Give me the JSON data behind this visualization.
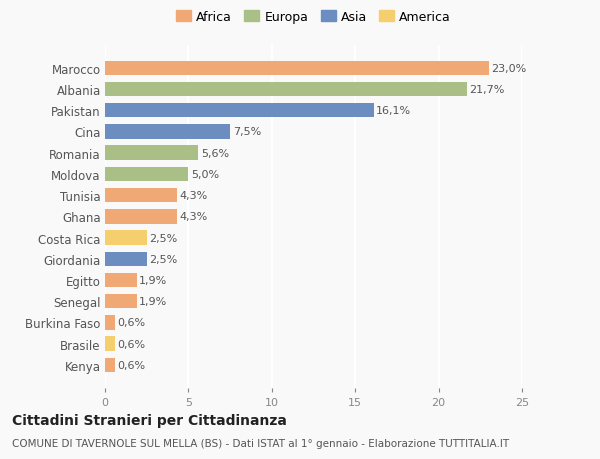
{
  "countries": [
    "Marocco",
    "Albania",
    "Pakistan",
    "Cina",
    "Romania",
    "Moldova",
    "Tunisia",
    "Ghana",
    "Costa Rica",
    "Giordania",
    "Egitto",
    "Senegal",
    "Burkina Faso",
    "Brasile",
    "Kenya"
  ],
  "values": [
    23.0,
    21.7,
    16.1,
    7.5,
    5.6,
    5.0,
    4.3,
    4.3,
    2.5,
    2.5,
    1.9,
    1.9,
    0.6,
    0.6,
    0.6
  ],
  "labels": [
    "23,0%",
    "21,7%",
    "16,1%",
    "7,5%",
    "5,6%",
    "5,0%",
    "4,3%",
    "4,3%",
    "2,5%",
    "2,5%",
    "1,9%",
    "1,9%",
    "0,6%",
    "0,6%",
    "0,6%"
  ],
  "continents": [
    "Africa",
    "Europa",
    "Asia",
    "Asia",
    "Europa",
    "Europa",
    "Africa",
    "Africa",
    "America",
    "Asia",
    "Africa",
    "Africa",
    "Africa",
    "America",
    "Africa"
  ],
  "colors": {
    "Africa": "#F0A875",
    "Europa": "#AABF85",
    "Asia": "#6B8DBF",
    "America": "#F5CE6E"
  },
  "legend_order": [
    "Africa",
    "Europa",
    "Asia",
    "America"
  ],
  "title": "Cittadini Stranieri per Cittadinanza",
  "subtitle": "COMUNE DI TAVERNOLE SUL MELLA (BS) - Dati ISTAT al 1° gennaio - Elaborazione TUTTITALIA.IT",
  "xlim": [
    0,
    25
  ],
  "xticks": [
    0,
    5,
    10,
    15,
    20,
    25
  ],
  "background_color": "#f9f9f9",
  "grid_color": "#ffffff",
  "label_fontsize": 8,
  "ytick_fontsize": 8.5,
  "xtick_fontsize": 8,
  "title_fontsize": 10,
  "subtitle_fontsize": 7.5,
  "bar_height": 0.68
}
